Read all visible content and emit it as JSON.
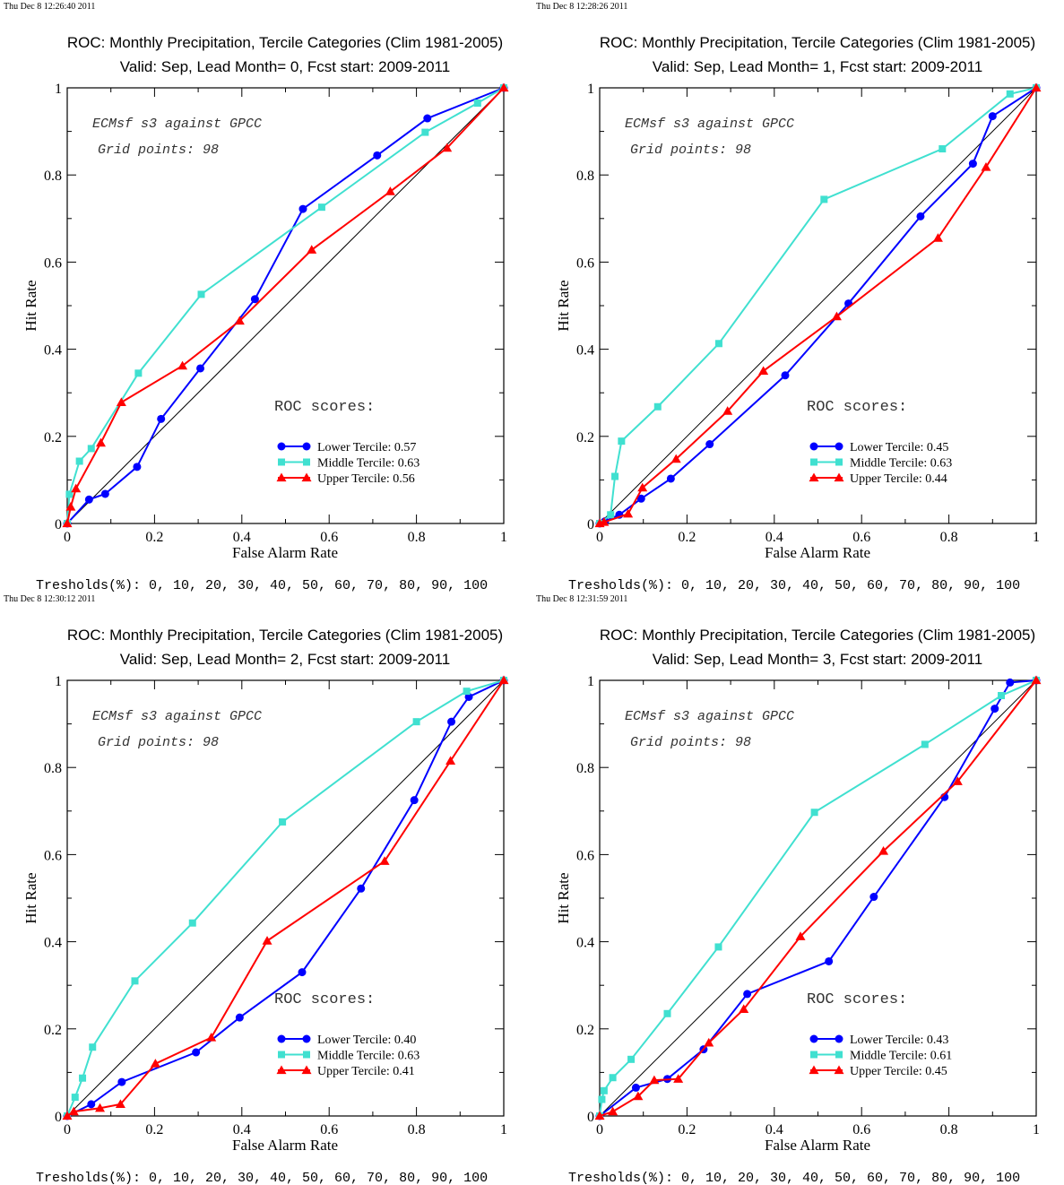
{
  "axis_labels": {
    "x": "False Alarm Rate",
    "y": "Hit Rate"
  },
  "colors": {
    "lower": "#0000ff",
    "middle": "#40e0d0",
    "upper": "#ff0000",
    "diagonal": "#000000"
  },
  "chart_data": [
    {
      "type": "line",
      "timestamp": "Thu Dec  8 12:26:40 2011",
      "title": "ROC: Monthly Precipitation, Tercile Categories (Clim 1981-2005)",
      "subtitle": "Valid: Sep, Lead Month= 0, Fcst start: 2009-2011",
      "annotation1": "ECMsf s3 against GPCC",
      "annotation2": "Grid points:   98",
      "legend_title": "ROC scores:",
      "thresholds": "Tresholds(%): 0, 10, 20, 30, 40, 50, 60, 70, 80, 90, 100",
      "xlabel": "False Alarm Rate",
      "ylabel": "Hit Rate",
      "xlim": [
        0,
        1
      ],
      "ylim": [
        0,
        1
      ],
      "xticks": [
        "0",
        "0.2",
        "0.4",
        "0.6",
        "0.8",
        "1"
      ],
      "yticks": [
        "0",
        "0.2",
        "0.4",
        "0.6",
        "0.8",
        "1"
      ],
      "series": [
        {
          "name": "Lower Tercile: 0.57",
          "marker": "circle",
          "color": "#0000ff",
          "x": [
            0,
            0.05,
            0.087,
            0.16,
            0.215,
            0.305,
            0.43,
            0.54,
            0.71,
            0.825,
            1
          ],
          "y": [
            0,
            0.055,
            0.068,
            0.13,
            0.24,
            0.356,
            0.515,
            0.722,
            0.845,
            0.93,
            1
          ]
        },
        {
          "name": "Middle Tercile: 0.63",
          "marker": "square",
          "color": "#40e0d0",
          "x": [
            0,
            0.005,
            0.028,
            0.055,
            0.163,
            0.307,
            0.583,
            0.82,
            0.94,
            1
          ],
          "y": [
            0,
            0.067,
            0.143,
            0.172,
            0.345,
            0.526,
            0.726,
            0.898,
            0.965,
            1
          ]
        },
        {
          "name": "Upper Tercile: 0.56",
          "marker": "triangle",
          "color": "#ff0000",
          "x": [
            0,
            0.008,
            0.02,
            0.077,
            0.124,
            0.264,
            0.395,
            0.56,
            0.74,
            0.87,
            1
          ],
          "y": [
            0,
            0.038,
            0.08,
            0.185,
            0.278,
            0.362,
            0.465,
            0.628,
            0.762,
            0.862,
            1
          ]
        }
      ]
    },
    {
      "type": "line",
      "timestamp": "Thu Dec  8 12:28:26 2011",
      "title": "ROC: Monthly Precipitation, Tercile Categories (Clim 1981-2005)",
      "subtitle": "Valid: Sep, Lead Month= 1, Fcst start: 2009-2011",
      "annotation1": "ECMsf s3 against GPCC",
      "annotation2": "Grid points:   98",
      "legend_title": "ROC scores:",
      "thresholds": "Tresholds(%): 0, 10, 20, 30, 40, 50, 60, 70, 80, 90, 100",
      "xlabel": "False Alarm Rate",
      "ylabel": "Hit Rate",
      "xlim": [
        0,
        1
      ],
      "ylim": [
        0,
        1
      ],
      "xticks": [
        "0",
        "0.2",
        "0.4",
        "0.6",
        "0.8",
        "1"
      ],
      "yticks": [
        "0",
        "0.2",
        "0.4",
        "0.6",
        "0.8",
        "1"
      ],
      "series": [
        {
          "name": "Lower Tercile: 0.45",
          "marker": "circle",
          "color": "#0000ff",
          "x": [
            0,
            0.012,
            0.045,
            0.095,
            0.163,
            0.252,
            0.425,
            0.57,
            0.735,
            0.855,
            0.9,
            1
          ],
          "y": [
            0,
            0.005,
            0.02,
            0.057,
            0.103,
            0.182,
            0.34,
            0.505,
            0.705,
            0.826,
            0.935,
            1
          ]
        },
        {
          "name": "Middle Tercile: 0.63",
          "marker": "square",
          "color": "#40e0d0",
          "x": [
            0,
            0.025,
            0.035,
            0.05,
            0.133,
            0.273,
            0.514,
            0.785,
            0.94,
            1
          ],
          "y": [
            0,
            0.02,
            0.108,
            0.189,
            0.268,
            0.413,
            0.744,
            0.86,
            0.986,
            1
          ]
        },
        {
          "name": "Upper Tercile: 0.44",
          "marker": "triangle",
          "color": "#ff0000",
          "x": [
            0,
            0.01,
            0.065,
            0.098,
            0.175,
            0.293,
            0.375,
            0.543,
            0.775,
            0.885,
            1
          ],
          "y": [
            0,
            0.003,
            0.022,
            0.082,
            0.148,
            0.258,
            0.35,
            0.475,
            0.655,
            0.818,
            1
          ]
        }
      ]
    },
    {
      "type": "line",
      "timestamp": "Thu Dec  8 12:30:12 2011",
      "title": "ROC: Monthly Precipitation, Tercile Categories (Clim 1981-2005)",
      "subtitle": "Valid: Sep, Lead Month= 2, Fcst start: 2009-2011",
      "annotation1": "ECMsf s3 against GPCC",
      "annotation2": "Grid points:   98",
      "legend_title": "ROC scores:",
      "thresholds": "Tresholds(%): 0, 10, 20, 30, 40, 50, 60, 70, 80, 90, 100",
      "xlabel": "False Alarm Rate",
      "ylabel": "Hit Rate",
      "xlim": [
        0,
        1
      ],
      "ylim": [
        0,
        1
      ],
      "xticks": [
        "0",
        "0.2",
        "0.4",
        "0.6",
        "0.8",
        "1"
      ],
      "yticks": [
        "0",
        "0.2",
        "0.4",
        "0.6",
        "0.8",
        "1"
      ],
      "series": [
        {
          "name": "Lower Tercile: 0.40",
          "marker": "circle",
          "color": "#0000ff",
          "x": [
            0,
            0.055,
            0.125,
            0.295,
            0.395,
            0.538,
            0.673,
            0.795,
            0.88,
            0.92,
            1
          ],
          "y": [
            0,
            0.027,
            0.078,
            0.146,
            0.226,
            0.33,
            0.522,
            0.725,
            0.905,
            0.962,
            1
          ]
        },
        {
          "name": "Middle Tercile: 0.63",
          "marker": "square",
          "color": "#40e0d0",
          "x": [
            0,
            0.018,
            0.035,
            0.058,
            0.155,
            0.287,
            0.493,
            0.8,
            0.915,
            1
          ],
          "y": [
            0,
            0.043,
            0.087,
            0.158,
            0.31,
            0.443,
            0.675,
            0.905,
            0.975,
            1
          ]
        },
        {
          "name": "Upper Tercile: 0.41",
          "marker": "triangle",
          "color": "#ff0000",
          "x": [
            0,
            0.015,
            0.075,
            0.122,
            0.202,
            0.33,
            0.458,
            0.727,
            0.878,
            1
          ],
          "y": [
            0,
            0.01,
            0.018,
            0.027,
            0.12,
            0.18,
            0.402,
            0.585,
            0.815,
            1
          ]
        }
      ]
    },
    {
      "type": "line",
      "timestamp": "Thu Dec  8 12:31:59 2011",
      "title": "ROC: Monthly Precipitation, Tercile Categories (Clim 1981-2005)",
      "subtitle": "Valid: Sep, Lead Month= 3, Fcst start: 2009-2011",
      "annotation1": "ECMsf s3 against GPCC",
      "annotation2": "Grid points:   98",
      "legend_title": "ROC scores:",
      "thresholds": "Tresholds(%): 0, 10, 20, 30, 40, 50, 60, 70, 80, 90, 100",
      "xlabel": "False Alarm Rate",
      "ylabel": "Hit Rate",
      "xlim": [
        0,
        1
      ],
      "ylim": [
        0,
        1
      ],
      "xticks": [
        "0",
        "0.2",
        "0.4",
        "0.6",
        "0.8",
        "1"
      ],
      "yticks": [
        "0",
        "0.2",
        "0.4",
        "0.6",
        "0.8",
        "1"
      ],
      "series": [
        {
          "name": "Lower Tercile: 0.43",
          "marker": "circle",
          "color": "#0000ff",
          "x": [
            0,
            0.083,
            0.155,
            0.238,
            0.338,
            0.525,
            0.628,
            0.79,
            0.905,
            0.94,
            1
          ],
          "y": [
            0,
            0.065,
            0.085,
            0.153,
            0.28,
            0.355,
            0.503,
            0.732,
            0.935,
            0.995,
            1
          ]
        },
        {
          "name": "Middle Tercile: 0.61",
          "marker": "square",
          "color": "#40e0d0",
          "x": [
            0,
            0.005,
            0.01,
            0.03,
            0.072,
            0.155,
            0.272,
            0.492,
            0.745,
            0.92,
            1
          ],
          "y": [
            0,
            0.038,
            0.058,
            0.088,
            0.13,
            0.235,
            0.388,
            0.697,
            0.853,
            0.965,
            1
          ]
        },
        {
          "name": "Upper Tercile: 0.45",
          "marker": "triangle",
          "color": "#ff0000",
          "x": [
            0,
            0.03,
            0.088,
            0.125,
            0.18,
            0.25,
            0.33,
            0.46,
            0.65,
            0.82,
            1
          ],
          "y": [
            0,
            0.01,
            0.045,
            0.082,
            0.085,
            0.168,
            0.245,
            0.412,
            0.608,
            0.768,
            1
          ]
        }
      ]
    }
  ]
}
